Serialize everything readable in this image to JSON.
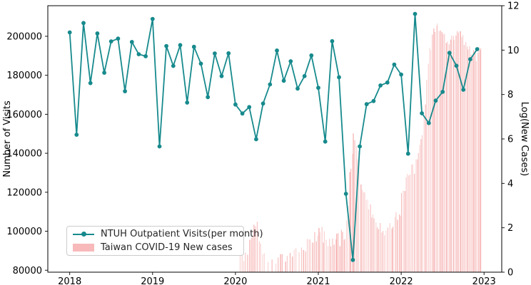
{
  "figure": {
    "background": "#ffffff",
    "line_color": "#178a8d",
    "bar_color": "#f08080",
    "spine_color": "#000000"
  },
  "legend": {
    "items": [
      {
        "label": "NTUH Outpatient Visits(per month)",
        "swatch": "teal-line-with-dot"
      },
      {
        "label": "Taiwan COVID-19 New cases",
        "swatch": "pink-patch"
      }
    ]
  },
  "chart_data": {
    "type": "line",
    "title": "",
    "xlabel": "",
    "x_tick_labels": [
      "2018",
      "2019",
      "2020",
      "2021",
      "2022",
      "2023"
    ],
    "x_tick_month_index": [
      0,
      12,
      24,
      36,
      48,
      60
    ],
    "xlim_months": [
      -3.17,
      62.56
    ],
    "left_axis": {
      "label": "Number of Visits",
      "ticks": [
        80000,
        100000,
        120000,
        140000,
        160000,
        180000,
        200000
      ],
      "lim": [
        79000,
        215700
      ]
    },
    "right_axis": {
      "label": "Log(New Cases)",
      "ticks": [
        0,
        2,
        4,
        6,
        8,
        10,
        12
      ],
      "lim": [
        0,
        12
      ]
    },
    "grid": false,
    "legend_position": "lower left",
    "series": [
      {
        "name": "NTUH Outpatient Visits(per month)",
        "type": "line",
        "axis": "left",
        "color": "#178a8d",
        "marker": "circle",
        "months_start": "2018-01",
        "values": [
          202000,
          149500,
          206800,
          176000,
          201500,
          181300,
          197400,
          198800,
          171800,
          197100,
          190800,
          189800,
          208900,
          143500,
          195000,
          184800,
          195500,
          166000,
          194600,
          186000,
          168800,
          191200,
          179600,
          191300,
          165000,
          160400,
          163700,
          147200,
          165500,
          175300,
          192700,
          177200,
          187200,
          173200,
          179600,
          190200,
          173600,
          146000,
          197500,
          179000,
          119200,
          85300,
          143500,
          165200,
          166800,
          174800,
          176300,
          185500,
          180400,
          139800,
          211500,
          160500,
          155500,
          167000,
          171500,
          191500,
          184900,
          172600,
          188200,
          193400
        ]
      },
      {
        "name": "Taiwan COVID-19 New cases",
        "type": "bar",
        "axis": "right",
        "color": "#f08080",
        "note": "daily ln(new cases); envelope per month: h0=height at month start, h1=at month end, n=visible bar stripes, j=height jitter, s/e=active fraction of month",
        "months_start": "2020-01",
        "envelope": [
          {
            "m": "2020-01",
            "h0": 0.6,
            "h1": 1.0,
            "n": 2,
            "j": 0.4,
            "s": 0.6
          },
          {
            "m": "2020-02",
            "h0": 0.7,
            "h1": 1.2,
            "n": 3,
            "j": 0.5
          },
          {
            "m": "2020-03",
            "h0": 1.4,
            "h1": 3.1,
            "n": 5,
            "j": 0.35
          },
          {
            "m": "2020-04",
            "h0": 3.0,
            "h1": 1.0,
            "n": 4,
            "j": 0.45
          },
          {
            "m": "2020-05",
            "h0": 0.9,
            "h1": 0.6,
            "n": 2,
            "j": 0.5
          },
          {
            "m": "2020-06",
            "h0": 0.7,
            "h1": 0.7,
            "n": 2,
            "j": 0.5
          },
          {
            "m": "2020-07",
            "h0": 0.8,
            "h1": 1.0,
            "n": 3,
            "j": 0.5
          },
          {
            "m": "2020-08",
            "h0": 0.9,
            "h1": 1.1,
            "n": 3,
            "j": 0.5
          },
          {
            "m": "2020-09",
            "h0": 0.9,
            "h1": 1.2,
            "n": 3,
            "j": 0.5
          },
          {
            "m": "2020-10",
            "h0": 1.0,
            "h1": 1.5,
            "n": 3,
            "j": 0.5
          },
          {
            "m": "2020-11",
            "h0": 1.2,
            "h1": 2.0,
            "n": 4,
            "j": 0.45
          },
          {
            "m": "2020-12",
            "h0": 1.5,
            "h1": 2.6,
            "n": 5,
            "j": 0.4
          },
          {
            "m": "2021-01",
            "h0": 2.4,
            "h1": 2.0,
            "n": 5,
            "j": 0.4
          },
          {
            "m": "2021-02",
            "h0": 1.8,
            "h1": 1.6,
            "n": 4,
            "j": 0.5
          },
          {
            "m": "2021-03",
            "h0": 1.6,
            "h1": 2.0,
            "n": 5,
            "j": 0.4
          },
          {
            "m": "2021-04",
            "h0": 1.8,
            "h1": 2.4,
            "n": 5,
            "j": 0.4
          },
          {
            "m": "2021-05",
            "h0": 2.2,
            "h1": 6.4,
            "n": 5,
            "j": 0.22
          },
          {
            "m": "2021-06",
            "h0": 6.3,
            "h1": 5.4,
            "n": 5,
            "j": 0.15
          },
          {
            "m": "2021-07",
            "h0": 5.0,
            "h1": 3.6,
            "n": 5,
            "j": 0.2
          },
          {
            "m": "2021-08",
            "h0": 3.6,
            "h1": 2.8,
            "n": 5,
            "j": 0.25
          },
          {
            "m": "2021-09",
            "h0": 3.2,
            "h1": 2.4,
            "n": 5,
            "j": 0.3
          },
          {
            "m": "2021-10",
            "h0": 2.6,
            "h1": 2.2,
            "n": 4,
            "j": 0.3
          },
          {
            "m": "2021-11",
            "h0": 2.4,
            "h1": 2.6,
            "n": 4,
            "j": 0.3
          },
          {
            "m": "2021-12",
            "h0": 2.6,
            "h1": 3.4,
            "n": 5,
            "j": 0.3
          },
          {
            "m": "2022-01",
            "h0": 3.8,
            "h1": 4.8,
            "n": 5,
            "j": 0.18
          },
          {
            "m": "2022-02",
            "h0": 4.6,
            "h1": 5.2,
            "n": 5,
            "j": 0.14
          },
          {
            "m": "2022-03",
            "h0": 5.2,
            "h1": 6.3,
            "n": 5,
            "j": 0.14
          },
          {
            "m": "2022-04",
            "h0": 6.5,
            "h1": 9.8,
            "n": 5,
            "j": 0.08
          },
          {
            "m": "2022-05",
            "h0": 10.0,
            "h1": 11.5,
            "n": 5,
            "j": 0.05
          },
          {
            "m": "2022-06",
            "h0": 11.5,
            "h1": 11.0,
            "n": 5,
            "j": 0.04
          },
          {
            "m": "2022-07",
            "h0": 10.9,
            "h1": 10.6,
            "n": 5,
            "j": 0.05
          },
          {
            "m": "2022-08",
            "h0": 10.7,
            "h1": 11.0,
            "n": 5,
            "j": 0.04
          },
          {
            "m": "2022-09",
            "h0": 11.05,
            "h1": 10.8,
            "n": 5,
            "j": 0.04
          },
          {
            "m": "2022-10",
            "h0": 10.7,
            "h1": 10.2,
            "n": 5,
            "j": 0.05
          },
          {
            "m": "2022-11",
            "h0": 10.1,
            "h1": 9.95,
            "n": 5,
            "j": 0.06
          },
          {
            "m": "2022-12",
            "h0": 10.1,
            "h1": 10.45,
            "n": 4,
            "j": 0.05,
            "e": 0.62
          }
        ]
      }
    ]
  }
}
